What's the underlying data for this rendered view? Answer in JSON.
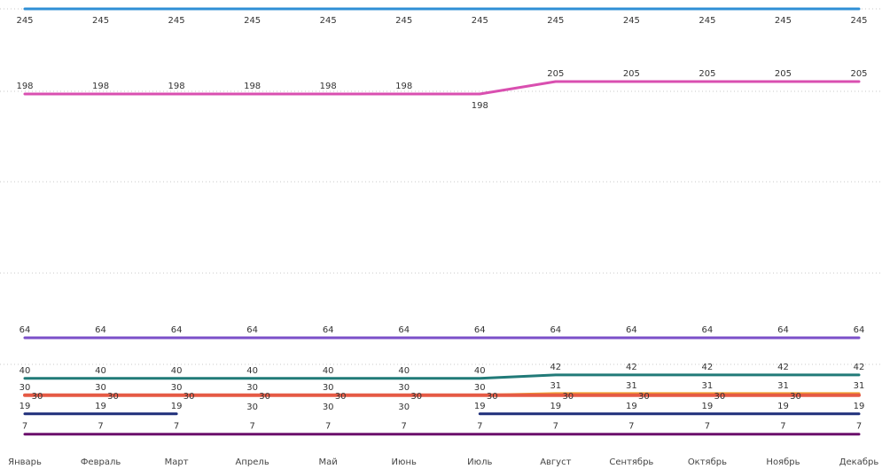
{
  "chart_data": {
    "type": "line",
    "title": "",
    "xlabel": "",
    "ylabel": "",
    "grid": true,
    "legend": "none",
    "ylim": [
      0,
      250
    ],
    "categories": [
      "Январь",
      "Февраль",
      "Март",
      "Апрель",
      "Май",
      "Июнь",
      "Июль",
      "Август",
      "Сентябрь",
      "Октябрь",
      "Ноябрь",
      "Декабрь"
    ],
    "series": [
      {
        "color": "#2f8fd6",
        "width": 3,
        "values": [
          245,
          245,
          245,
          245,
          245,
          245,
          245,
          245,
          245,
          245,
          245,
          245
        ]
      },
      {
        "color": "#d94fb0",
        "width": 3,
        "values": [
          198,
          198,
          198,
          198,
          198,
          198,
          198,
          205,
          205,
          205,
          205,
          205
        ]
      },
      {
        "color": "#7b4fc9",
        "width": 3,
        "values": [
          64,
          64,
          64,
          64,
          64,
          64,
          64,
          64,
          64,
          64,
          64,
          64
        ]
      },
      {
        "color": "#217a78",
        "width": 3,
        "values": [
          40,
          40,
          40,
          40,
          40,
          40,
          40,
          42,
          42,
          42,
          42,
          42
        ]
      },
      {
        "color": "#f0a030",
        "width": 3,
        "values": [
          30,
          30,
          30,
          30,
          30,
          30,
          30,
          31,
          31,
          31,
          31,
          31
        ]
      },
      {
        "color": "#e55a45",
        "width": 4,
        "values": [
          30,
          30,
          30,
          30,
          30,
          30,
          30,
          30,
          30,
          30,
          30,
          30
        ]
      },
      {
        "color": "#1f2f7a",
        "width": 3,
        "values": [
          19,
          19,
          19,
          null,
          null,
          null,
          19,
          19,
          19,
          19,
          19,
          19
        ]
      },
      {
        "color": "#6b0f6b",
        "width": 3,
        "values": [
          7,
          7,
          7,
          7,
          7,
          7,
          7,
          7,
          7,
          7,
          7,
          7
        ]
      }
    ]
  }
}
